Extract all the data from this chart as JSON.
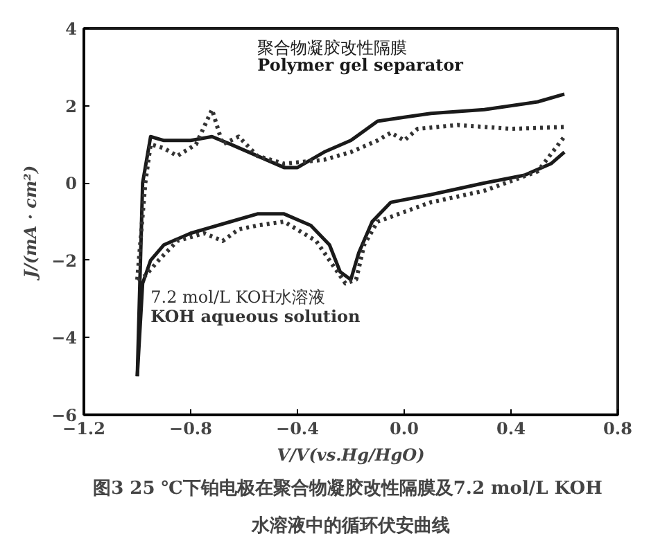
{
  "chart_data": {
    "type": "line",
    "xlabel": "V/V(vs.Hg/HgO)",
    "ylabel": "J/(mA · cm²)",
    "xlim": [
      -1.2,
      0.8
    ],
    "ylim": [
      -6,
      4
    ],
    "xticks": [
      {
        "value": -1.2,
        "label": "−1.2"
      },
      {
        "value": -0.8,
        "label": "−0.8"
      },
      {
        "value": -0.4,
        "label": "−0.4"
      },
      {
        "value": 0,
        "label": "0.0"
      },
      0.4,
      0.8
    ],
    "yticks": [
      {
        "value": -6,
        "label": "−6"
      },
      {
        "value": -4,
        "label": "−4"
      },
      {
        "value": -2,
        "label": "−2"
      },
      0,
      2,
      4
    ],
    "grid": false,
    "series": [
      {
        "name": "聚合物凝胶改性隔膜\nPolymer gel separator",
        "color": "#1a1a1a",
        "line_style": "solid",
        "x": [
          -1.0,
          -0.98,
          -0.95,
          -0.9,
          -0.8,
          -0.72,
          -0.65,
          -0.55,
          -0.45,
          -0.4,
          -0.3,
          -0.2,
          -0.1,
          0.0,
          0.1,
          0.3,
          0.5,
          0.6
        ],
        "values": [
          -5.0,
          0.0,
          1.2,
          1.1,
          1.1,
          1.2,
          1.0,
          0.7,
          0.4,
          0.4,
          0.8,
          1.1,
          1.6,
          1.7,
          1.8,
          1.9,
          2.1,
          2.3
        ]
      },
      {
        "color": "#1a1a1a",
        "line_style": "solid",
        "x": [
          -1.0,
          -0.98,
          -0.95,
          -0.9,
          -0.8,
          -0.75,
          -0.65,
          -0.55,
          -0.45,
          -0.35,
          -0.28,
          -0.24,
          -0.2,
          -0.17,
          -0.12,
          -0.05,
          0.1,
          0.3,
          0.45,
          0.55,
          0.6
        ],
        "values": [
          -5.0,
          -2.6,
          -2.0,
          -1.6,
          -1.3,
          -1.2,
          -1.0,
          -0.8,
          -0.8,
          -1.1,
          -1.6,
          -2.3,
          -2.5,
          -1.8,
          -1.0,
          -0.5,
          -0.3,
          0.0,
          0.2,
          0.5,
          0.8
        ]
      },
      {
        "name": "7.2 mol/L KOH水溶液\nKOH aqueous solution",
        "color": "#333333",
        "line_style": "dotted",
        "x": [
          -1.0,
          -0.97,
          -0.95,
          -0.9,
          -0.85,
          -0.78,
          -0.72,
          -0.68,
          -0.62,
          -0.55,
          -0.45,
          -0.3,
          -0.2,
          -0.1,
          -0.05,
          0.0,
          0.05,
          0.2,
          0.4,
          0.6
        ],
        "values": [
          -2.5,
          0.0,
          1.0,
          0.9,
          0.7,
          1.0,
          1.9,
          1.0,
          1.2,
          0.7,
          0.5,
          0.6,
          0.8,
          1.1,
          1.3,
          1.1,
          1.4,
          1.5,
          1.4,
          1.45
        ]
      },
      {
        "color": "#333333",
        "line_style": "dotted",
        "x": [
          -1.0,
          -0.97,
          -0.92,
          -0.85,
          -0.75,
          -0.68,
          -0.62,
          -0.55,
          -0.45,
          -0.33,
          -0.28,
          -0.22,
          -0.18,
          -0.15,
          -0.1,
          0.1,
          0.3,
          0.5,
          0.6
        ],
        "values": [
          -2.5,
          -2.4,
          -2.0,
          -1.5,
          -1.3,
          -1.5,
          -1.2,
          -1.1,
          -1.0,
          -1.5,
          -2.0,
          -2.6,
          -2.5,
          -1.6,
          -1.0,
          -0.5,
          -0.2,
          0.3,
          1.2
        ]
      }
    ],
    "annotations": [
      "图3  25 ℃下铂电极在聚合物凝胶改性隔膜及7.2 mol/L KOH\n水溶液中的循环伏安曲线"
    ]
  }
}
